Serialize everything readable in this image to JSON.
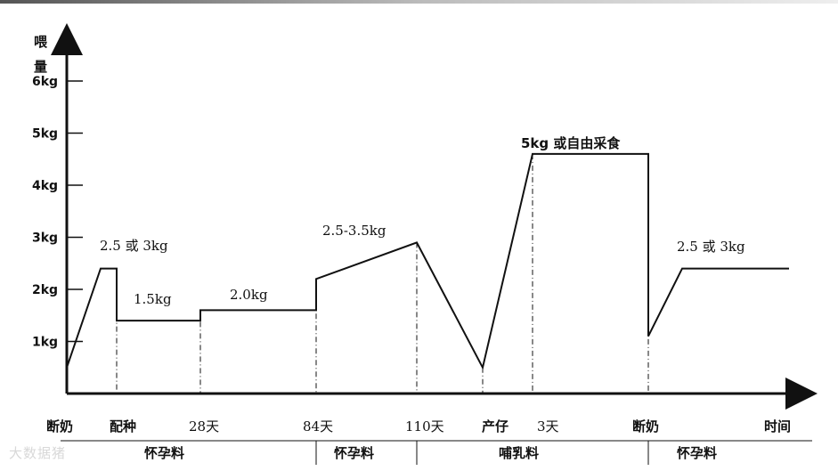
{
  "chart_data": {
    "type": "line",
    "ylabel_line1": "喂",
    "ylabel_line2": "量",
    "xlabel": "时间",
    "yticks": [
      "1kg",
      "2kg",
      "3kg",
      "4kg",
      "5kg",
      "6kg"
    ],
    "ylim": [
      0,
      6.5
    ],
    "grid": false,
    "x_stages": [
      "断奶",
      "配种",
      "28天",
      "84天",
      "110天",
      "产仔",
      "3天",
      "断奶"
    ],
    "phase_labels": [
      "怀孕料",
      "怀孕料",
      "哺乳料",
      "怀孕料"
    ],
    "series": [
      {
        "points": [
          {
            "x": "断奶",
            "y": 0.5
          },
          {
            "x": "断奶+",
            "y": 2.4
          },
          {
            "x": "配种",
            "y": 2.4
          },
          {
            "x": "配种",
            "y": 1.4
          },
          {
            "x": "28天",
            "y": 1.4
          },
          {
            "x": "28天",
            "y": 1.6
          },
          {
            "x": "84天",
            "y": 1.6
          },
          {
            "x": "84天",
            "y": 2.2
          },
          {
            "x": "110天",
            "y": 2.9
          },
          {
            "x": "产仔",
            "y": 0.5
          },
          {
            "x": "3天",
            "y": 4.6
          },
          {
            "x": "断奶",
            "y": 4.6
          },
          {
            "x": "断奶",
            "y": 1.1
          },
          {
            "x": "断奶+",
            "y": 2.4
          },
          {
            "x": "end",
            "y": 2.4
          }
        ]
      }
    ],
    "annotations": [
      "2.5 或 3kg",
      "1.5kg",
      "2.0kg",
      "2.5-3.5kg",
      "5kg 或自由采食",
      "2.5 或 3kg"
    ]
  },
  "colors": {
    "line": "#111111",
    "axis": "#111111",
    "background": "#ffffff"
  },
  "watermark": "大数据猪"
}
